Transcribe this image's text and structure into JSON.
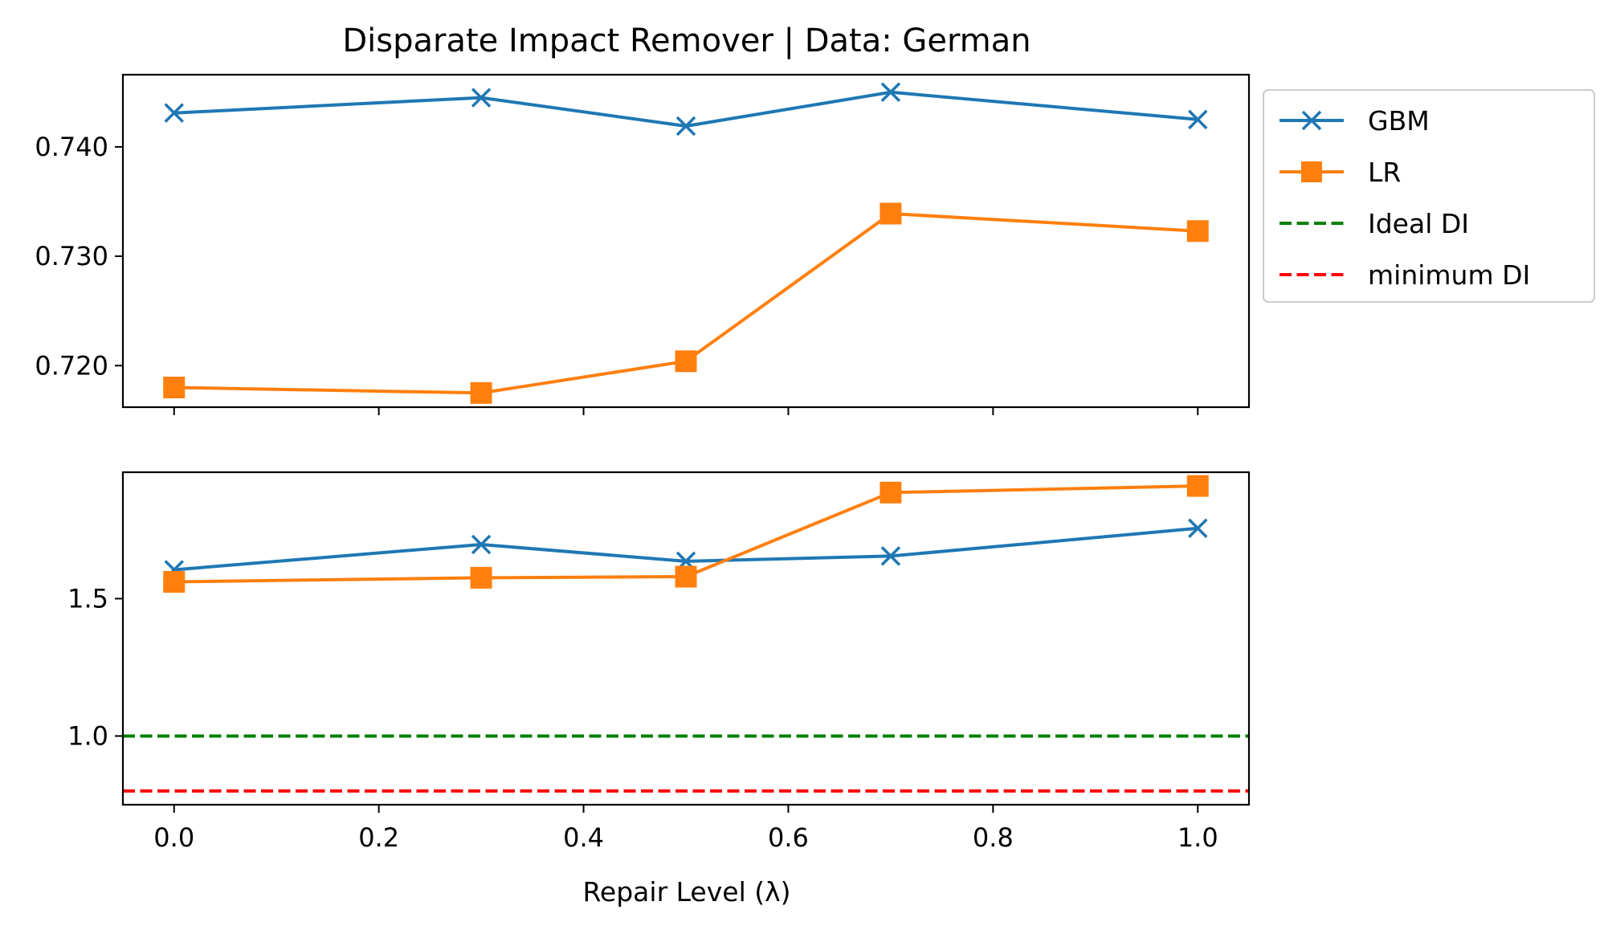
{
  "chart_data": [
    {
      "type": "line",
      "title": "Disparate Impact Remover | Data: German",
      "xlim": [
        -0.05,
        1.05
      ],
      "ylim": [
        0.7162,
        0.7466
      ],
      "x": [
        0.0,
        0.3,
        0.5,
        0.7,
        1.0
      ],
      "yticks": [
        "0.720",
        "0.730",
        "0.740"
      ],
      "ytick_values": [
        0.72,
        0.73,
        0.74
      ],
      "series": [
        {
          "name": "GBM",
          "color": "#1f77b4",
          "marker": "x",
          "values": [
            0.7431,
            0.7445,
            0.7419,
            0.745,
            0.7425
          ]
        },
        {
          "name": "LR",
          "color": "#ff7f0e",
          "marker": "s",
          "values": [
            0.718,
            0.7175,
            0.7204,
            0.7339,
            0.7323
          ]
        }
      ],
      "grid": false
    },
    {
      "type": "line",
      "xlabel": "Repair Level (λ)",
      "xlim": [
        -0.05,
        1.05
      ],
      "ylim": [
        0.75,
        1.96
      ],
      "x": [
        0.0,
        0.3,
        0.5,
        0.7,
        1.0
      ],
      "xticks": [
        "0.0",
        "0.2",
        "0.4",
        "0.6",
        "0.8",
        "1.0"
      ],
      "xtick_values": [
        0.0,
        0.2,
        0.4,
        0.6,
        0.8,
        1.0
      ],
      "yticks": [
        "1.0",
        "1.5"
      ],
      "ytick_values": [
        1.0,
        1.5
      ],
      "series": [
        {
          "name": "GBM",
          "color": "#1f77b4",
          "marker": "x",
          "values": [
            1.605,
            1.697,
            1.636,
            1.655,
            1.756
          ]
        },
        {
          "name": "LR",
          "color": "#ff7f0e",
          "marker": "s",
          "values": [
            1.561,
            1.576,
            1.58,
            1.886,
            1.91
          ]
        }
      ],
      "reference_lines": [
        {
          "name": "Ideal DI",
          "color": "#008000",
          "style": "dashed",
          "y": 1.0
        },
        {
          "name": "minimum DI",
          "color": "#ff0000",
          "style": "dashed",
          "y": 0.8
        }
      ],
      "grid": false
    }
  ],
  "legend": {
    "placement": "right, outside top panel",
    "entries": [
      {
        "label": "GBM",
        "color": "#1f77b4",
        "marker": "x",
        "style": "solid"
      },
      {
        "label": "LR",
        "color": "#ff7f0e",
        "marker": "s",
        "style": "solid"
      },
      {
        "label": "Ideal DI",
        "color": "#008000",
        "marker": "",
        "style": "dashed"
      },
      {
        "label": "minimum DI",
        "color": "#ff0000",
        "marker": "",
        "style": "dashed"
      }
    ]
  }
}
